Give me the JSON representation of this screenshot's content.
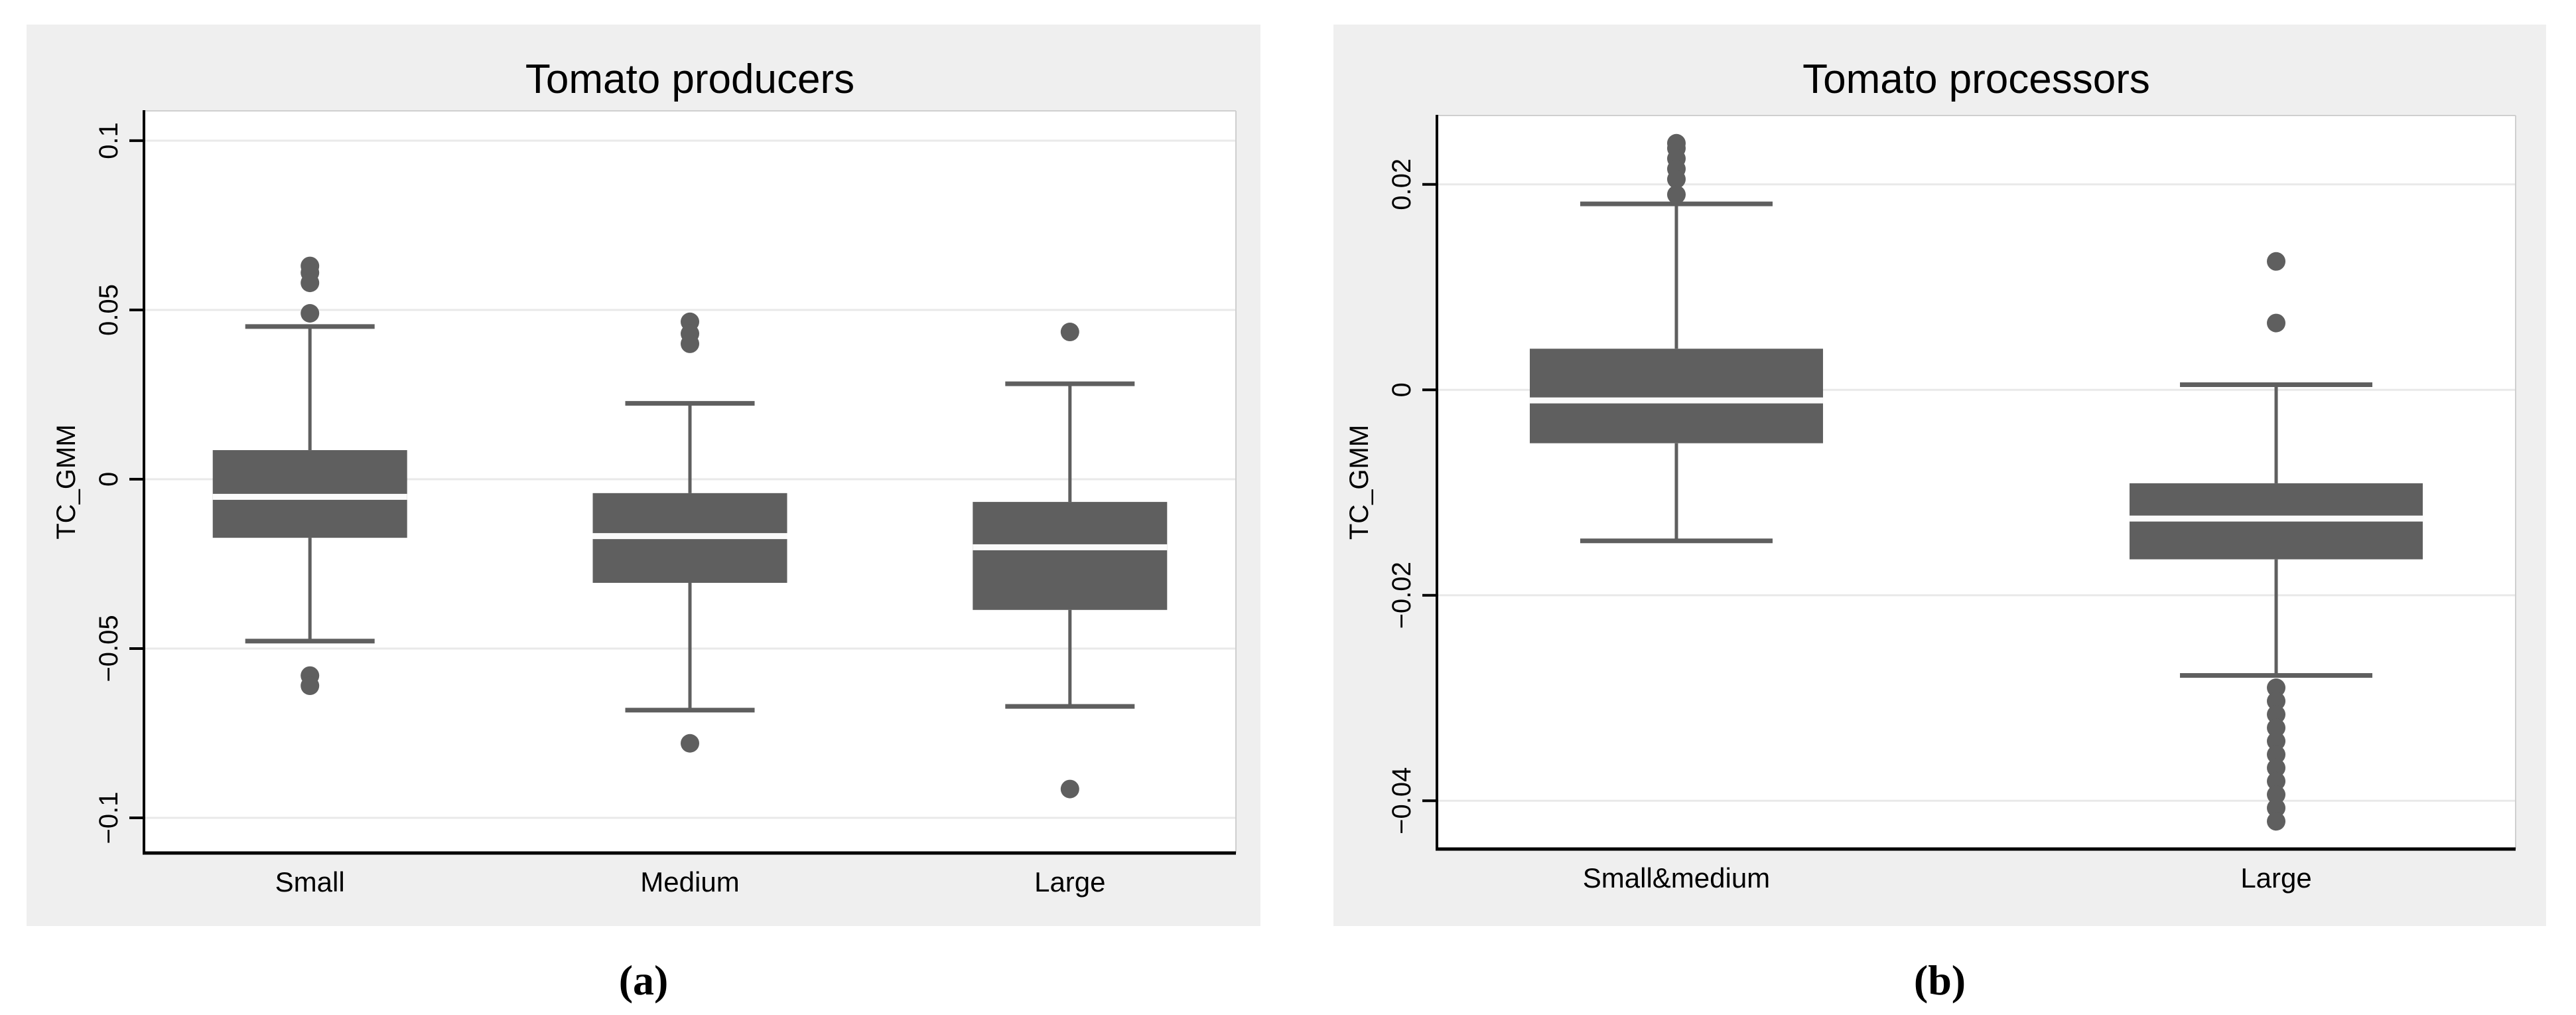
{
  "figure": {
    "captions": {
      "a": "(a)",
      "b": "(b)"
    }
  },
  "colors": {
    "panel_bg": "#efefef",
    "plot_bg": "#ffffff",
    "box": "#5f5f5f",
    "median": "#fafafa",
    "grid": "#e9e9e9",
    "border": "#cfcfcf",
    "axis": "#000000",
    "text": "#000000"
  },
  "chart_data": [
    {
      "type": "box",
      "title": "Tomato producers",
      "xlabel": "",
      "ylabel": "TC_GMM",
      "ylim": [
        -0.1104,
        0.1088
      ],
      "grid": true,
      "legend": "none",
      "categories": [
        "Small",
        "Medium",
        "Large"
      ],
      "yticks": [
        {
          "value": 0.1,
          "label": "0.1"
        },
        {
          "value": 0.05,
          "label": "0.05"
        },
        {
          "value": 0,
          "label": "0"
        },
        {
          "value": -0.05,
          "label": "−0.05"
        },
        {
          "value": -0.1,
          "label": "−0.1"
        }
      ],
      "boxes": [
        {
          "category": "Small",
          "q1": -0.0173,
          "median": -0.0051,
          "q3": 0.0086,
          "whisker_low": -0.0478,
          "whisker_high": 0.0451,
          "outliers_high": [
            0.063,
            0.061,
            0.058,
            0.049
          ],
          "outliers_low": [
            -0.058,
            -0.061
          ]
        },
        {
          "category": "Medium",
          "q1": -0.0306,
          "median": -0.0167,
          "q3": -0.0041,
          "whisker_low": -0.0682,
          "whisker_high": 0.0224,
          "outliers_high": [
            0.0465,
            0.043,
            0.04
          ],
          "outliers_low": [
            -0.078
          ]
        },
        {
          "category": "Large",
          "q1": -0.0386,
          "median": -0.02,
          "q3": -0.0067,
          "whisker_low": -0.0671,
          "whisker_high": 0.0282,
          "outliers_high": [
            0.0435
          ],
          "outliers_low": [
            -0.0915
          ]
        }
      ]
    },
    {
      "type": "box",
      "title": "Tomato processors",
      "xlabel": "",
      "ylabel": "TC_GMM",
      "ylim": [
        -0.0447,
        0.0267
      ],
      "grid": true,
      "legend": "none",
      "categories": [
        "Small&medium",
        "Large"
      ],
      "yticks": [
        {
          "value": 0.02,
          "label": "0.02"
        },
        {
          "value": 0,
          "label": "0"
        },
        {
          "value": -0.02,
          "label": "−0.02"
        },
        {
          "value": -0.04,
          "label": "−0.04"
        }
      ],
      "boxes": [
        {
          "category": "Small&medium",
          "q1": -0.0052,
          "median": -0.001,
          "q3": 0.004,
          "whisker_low": -0.0147,
          "whisker_high": 0.0181,
          "outliers_high": [
            0.024,
            0.0235,
            0.0225,
            0.0215,
            0.0205,
            0.019
          ],
          "outliers_low": []
        },
        {
          "category": "Large",
          "q1": -0.0165,
          "median": -0.0125,
          "q3": -0.0091,
          "whisker_low": -0.0278,
          "whisker_high": 0.0005,
          "outliers_high": [
            0.0125,
            0.0065
          ],
          "outliers_low": [
            -0.029,
            -0.0303,
            -0.0316,
            -0.0329,
            -0.0342,
            -0.0355,
            -0.0368,
            -0.0381,
            -0.0394,
            -0.0407,
            -0.042
          ]
        }
      ]
    }
  ]
}
